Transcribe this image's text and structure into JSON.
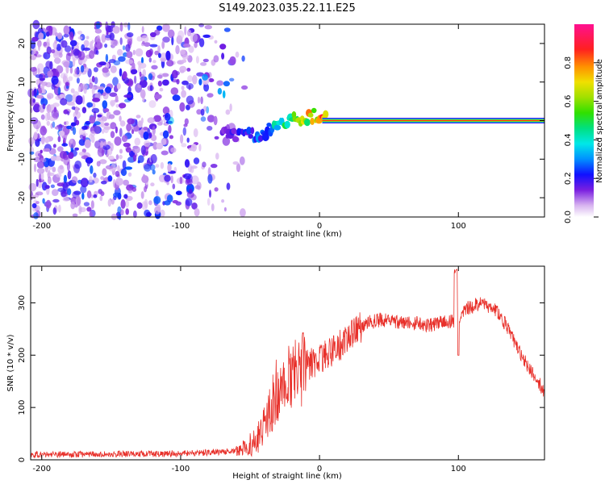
{
  "title": "S149.2023.035.22.11.E25",
  "chart_data": [
    {
      "type": "heatmap",
      "title": "S149.2023.035.22.11.E25",
      "xlabel": "Height of straight line (km)",
      "ylabel": "Frequency (Hz)",
      "xlim": [
        -208,
        162
      ],
      "ylim": [
        -25,
        25
      ],
      "x_ticks": [
        "-200",
        "-100",
        "0",
        "100"
      ],
      "y_ticks": [
        "-20",
        "-10",
        "0",
        "10",
        "20"
      ],
      "colorbar": {
        "label": "Normalized spectral amplitude",
        "range": [
          0,
          1
        ],
        "ticks": [
          "0.0",
          "0.2",
          "0.4",
          "0.6",
          "0.8"
        ]
      },
      "ridge": {
        "description_points_x": [
          -70,
          -60,
          -50,
          -40,
          -30,
          -20,
          -10,
          0,
          10,
          50,
          100,
          162
        ],
        "frequency_hz": [
          -3,
          -4,
          -4,
          -3,
          -1,
          0,
          1,
          1.5,
          0,
          0,
          0,
          0
        ],
        "amplitude": [
          0.15,
          0.2,
          0.25,
          0.3,
          0.45,
          0.6,
          0.75,
          0.85,
          0.9,
          0.9,
          0.9,
          0.9
        ]
      },
      "noise_extent_x": [
        -208,
        -62
      ]
    },
    {
      "type": "line",
      "xlabel": "Height of straight line (km)",
      "ylabel": "SNR (10 * v/v)",
      "xlim": [
        -208,
        162
      ],
      "ylim": [
        0,
        370
      ],
      "x_ticks": [
        "-200",
        "-100",
        "0",
        "100"
      ],
      "y_ticks": [
        "0",
        "100",
        "200",
        "300"
      ],
      "color": "#e8302a",
      "series": [
        {
          "x": [
            -208,
            -180,
            -150,
            -120,
            -100,
            -80,
            -65,
            -55,
            -45,
            -35,
            -25,
            -15,
            -5,
            5,
            15,
            25,
            35,
            45,
            60,
            80,
            95,
            100,
            105,
            115,
            125,
            135,
            145,
            155,
            162
          ],
          "values": [
            10,
            10,
            11,
            11,
            12,
            14,
            16,
            20,
            40,
            90,
            150,
            175,
            185,
            200,
            220,
            245,
            262,
            268,
            262,
            258,
            265,
            270,
            288,
            298,
            292,
            255,
            200,
            160,
            130
          ]
        }
      ]
    }
  ]
}
